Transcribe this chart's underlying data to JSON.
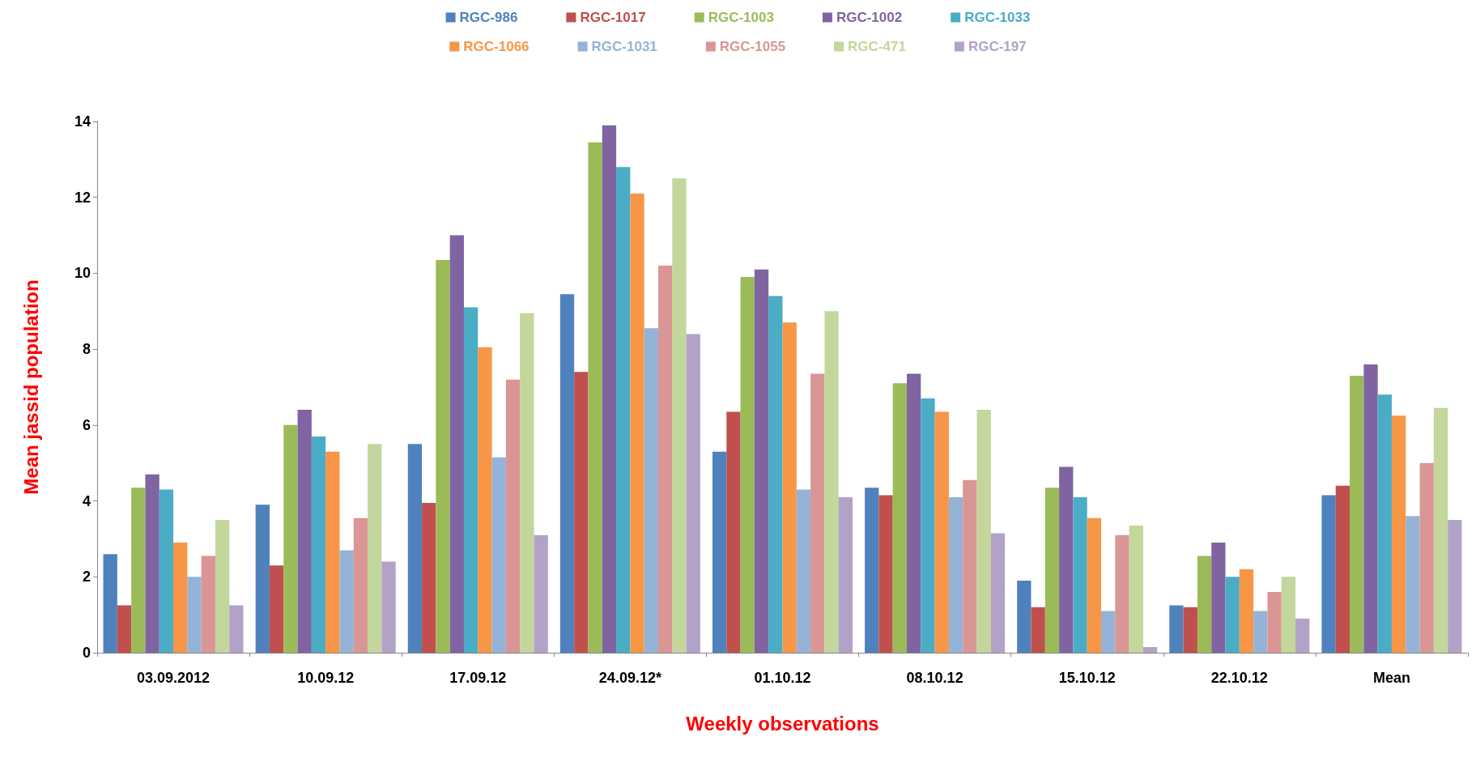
{
  "chart_data": {
    "type": "bar",
    "xlabel": "Weekly observations",
    "ylabel": "Mean jassid population",
    "categories": [
      "03.09.2012",
      "10.09.12",
      "17.09.12",
      "24.09.12*",
      "01.10.12",
      "08.10.12",
      "15.10.12",
      "22.10.12",
      "Mean"
    ],
    "series": [
      {
        "name": "RGC-986",
        "color": "#4f81bd",
        "values": [
          2.6,
          3.9,
          5.5,
          9.45,
          5.3,
          4.35,
          1.9,
          1.25,
          4.15
        ]
      },
      {
        "name": "RGC-1017",
        "color": "#c0504d",
        "values": [
          1.25,
          2.3,
          3.95,
          7.4,
          6.35,
          4.15,
          1.2,
          1.2,
          4.4
        ]
      },
      {
        "name": "RGC-1003",
        "color": "#9bbb59",
        "values": [
          4.35,
          6.0,
          10.35,
          13.45,
          9.9,
          7.1,
          4.35,
          2.55,
          7.3
        ]
      },
      {
        "name": "RGC-1002",
        "color": "#8064a2",
        "values": [
          4.7,
          6.4,
          11.0,
          13.9,
          10.1,
          7.35,
          4.9,
          2.9,
          7.6
        ]
      },
      {
        "name": "RGC-1033",
        "color": "#4bacc6",
        "values": [
          4.3,
          5.7,
          9.1,
          12.8,
          9.4,
          6.7,
          4.1,
          2.0,
          6.8
        ]
      },
      {
        "name": "RGC-1066",
        "color": "#f79646",
        "values": [
          2.9,
          5.3,
          8.05,
          12.1,
          8.7,
          6.35,
          3.55,
          2.2,
          6.25
        ]
      },
      {
        "name": "RGC-1031",
        "color": "#95b3d7",
        "values": [
          2.0,
          2.7,
          5.15,
          8.55,
          4.3,
          4.1,
          1.1,
          1.1,
          3.6
        ]
      },
      {
        "name": "RGC-1055",
        "color": "#d99694",
        "values": [
          2.55,
          3.55,
          7.2,
          10.2,
          7.35,
          4.55,
          3.1,
          1.6,
          5.0
        ]
      },
      {
        "name": "RGC-471",
        "color": "#c3d69b",
        "values": [
          3.5,
          5.5,
          8.95,
          12.5,
          9.0,
          6.4,
          3.35,
          2.0,
          6.45
        ]
      },
      {
        "name": "RGC-197",
        "color": "#b3a2c7",
        "values": [
          1.25,
          2.4,
          3.1,
          8.4,
          4.1,
          3.15,
          0.15,
          0.9,
          3.5
        ]
      }
    ],
    "ylim": [
      0,
      14
    ],
    "yticks": [
      0,
      2,
      4,
      6,
      8,
      10,
      12,
      14
    ],
    "grid": false,
    "legend": "top"
  }
}
